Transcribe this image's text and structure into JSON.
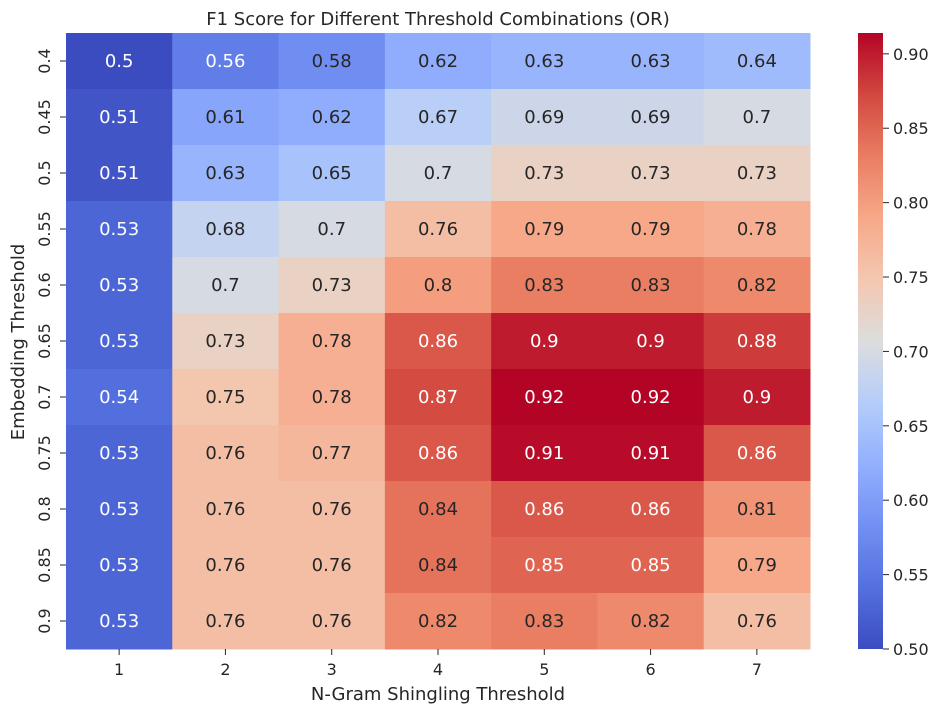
{
  "chart_data": {
    "type": "heatmap",
    "title": "F1 Score for Different Threshold Combinations (OR)",
    "xlabel": "N-Gram Shingling Threshold",
    "ylabel": "Embedding Threshold",
    "x_categories": [
      "1",
      "2",
      "3",
      "4",
      "5",
      "6",
      "7"
    ],
    "y_categories": [
      "0.4",
      "0.45",
      "0.5",
      "0.55",
      "0.6",
      "0.65",
      "0.7",
      "0.75",
      "0.8",
      "0.85",
      "0.9"
    ],
    "values": [
      [
        0.5,
        0.56,
        0.58,
        0.62,
        0.63,
        0.63,
        0.64
      ],
      [
        0.51,
        0.61,
        0.62,
        0.67,
        0.69,
        0.69,
        0.7
      ],
      [
        0.51,
        0.63,
        0.65,
        0.7,
        0.73,
        0.73,
        0.73
      ],
      [
        0.53,
        0.68,
        0.7,
        0.76,
        0.79,
        0.79,
        0.78
      ],
      [
        0.53,
        0.7,
        0.73,
        0.8,
        0.83,
        0.83,
        0.82
      ],
      [
        0.53,
        0.73,
        0.78,
        0.86,
        0.9,
        0.9,
        0.88
      ],
      [
        0.54,
        0.75,
        0.78,
        0.87,
        0.92,
        0.92,
        0.9
      ],
      [
        0.53,
        0.76,
        0.77,
        0.86,
        0.91,
        0.91,
        0.86
      ],
      [
        0.53,
        0.76,
        0.76,
        0.84,
        0.86,
        0.86,
        0.81
      ],
      [
        0.53,
        0.76,
        0.76,
        0.84,
        0.85,
        0.85,
        0.79
      ],
      [
        0.53,
        0.76,
        0.76,
        0.82,
        0.83,
        0.82,
        0.76
      ]
    ],
    "colormap": "coolwarm",
    "vmin": 0.5,
    "vmax": 0.914,
    "colorbar_ticks": [
      "0.50",
      "0.55",
      "0.60",
      "0.65",
      "0.70",
      "0.75",
      "0.80",
      "0.85",
      "0.90"
    ],
    "annotations": true,
    "grid": false,
    "colors": {
      "low": "#3b4cc0",
      "mid": "#dddddd",
      "high": "#b40426",
      "text_dark": "#262626",
      "text_light": "#ffffff"
    }
  }
}
